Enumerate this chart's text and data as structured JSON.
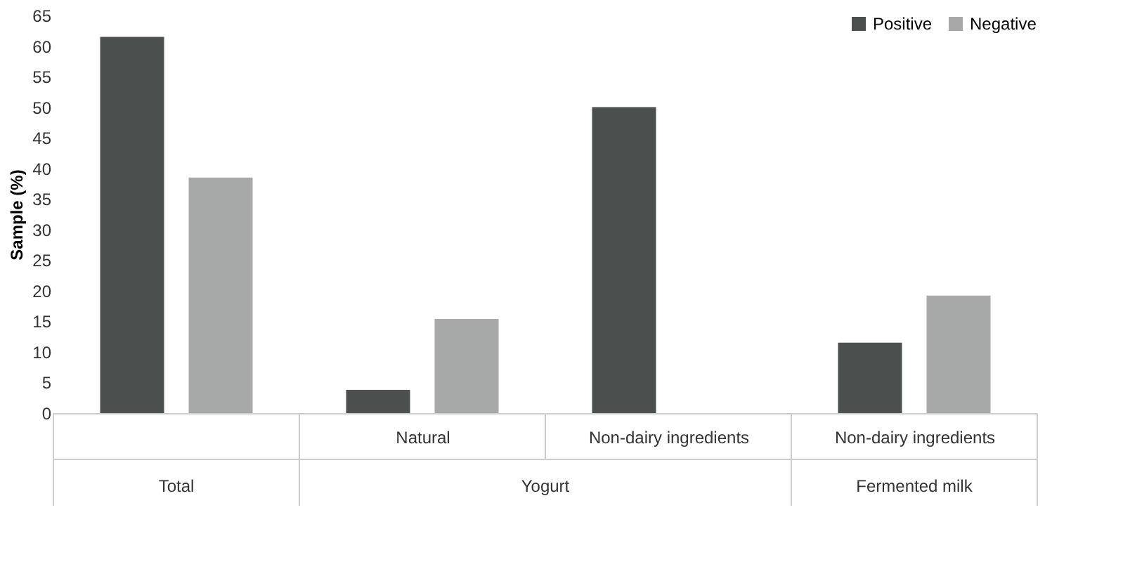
{
  "chart_data": {
    "type": "bar",
    "ylabel": "Sample (%)",
    "categories": [
      null,
      "Natural",
      "Non-dairy ingredients",
      "Non-dairy ingredients"
    ],
    "series": [
      {
        "name": "Positive",
        "color": "#4b504e",
        "values": [
          61.5,
          3.8,
          50,
          11.5
        ]
      },
      {
        "name": "Negative",
        "color": "#a6a9a7",
        "values": [
          38.5,
          15.4,
          0,
          19.2
        ]
      }
    ],
    "annotations": [
      "Total",
      "Yogurt",
      "Fermented milk"
    ],
    "ylim": [
      0,
      65
    ],
    "yticks": [
      0,
      5,
      10,
      15,
      20,
      25,
      30,
      35,
      40,
      45,
      50,
      55,
      60,
      65
    ],
    "grid": false,
    "legend": "top right"
  }
}
